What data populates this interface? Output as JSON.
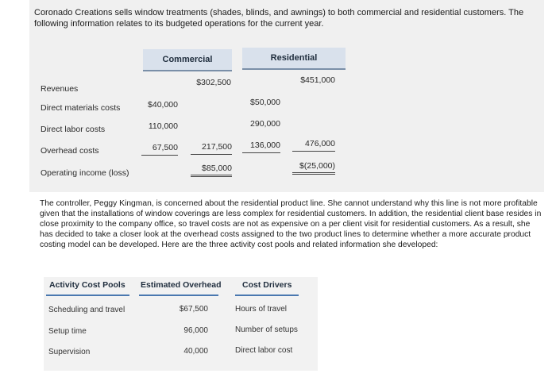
{
  "intro": "Coronado Creations sells window treatments (shades, blinds, and awnings) to both commercial and residential customers. The following information relates to its budgeted operations for the current year.",
  "table1": {
    "headers": {
      "commercial": "Commercial",
      "residential": "Residential"
    },
    "rows": [
      {
        "label": "Revenues",
        "c_right": "$302,500",
        "r_right": "$451,000"
      },
      {
        "label": "Direct materials costs",
        "c_left": "$40,000",
        "r_left": "$50,000"
      },
      {
        "label": "Direct labor costs",
        "c_left": "110,000",
        "r_left": "290,000"
      },
      {
        "label": "Overhead costs",
        "c_left": "67,500",
        "c_right": "217,500",
        "r_left": "136,000",
        "r_right": "476,000"
      },
      {
        "label": "Operating income (loss)",
        "c_right": "$85,000",
        "r_right": "$(25,000)"
      }
    ]
  },
  "paragraph": "The controller, Peggy Kingman, is concerned about the residential product line. She cannot understand why this line is not more profitable given that the installations of window coverings are less complex for residential customers. In addition, the residential client base resides in close proximity to the company office, so travel costs are not as expensive on a per client visit for residential customers. As a result, she has decided to take a closer look at the overhead costs assigned to the two product lines to determine whether a more accurate product costing model can be developed. Here are the three activity cost pools and related information she developed:",
  "table2": {
    "headers": {
      "pools": "Activity Cost Pools",
      "overhead": "Estimated Overhead",
      "drivers": "Cost Drivers"
    },
    "rows": [
      {
        "pool": "Scheduling and travel",
        "overhead": "$67,500",
        "driver": "Hours of travel"
      },
      {
        "pool": "Setup time",
        "overhead": "96,000",
        "driver": "Number of setups"
      },
      {
        "pool": "Supervision",
        "overhead": "40,000",
        "driver": "Direct labor cost"
      }
    ]
  }
}
